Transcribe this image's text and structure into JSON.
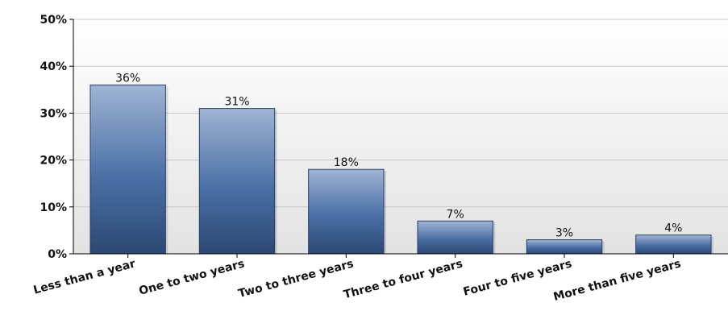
{
  "chart_data": {
    "type": "bar",
    "categories": [
      "Less than a year",
      "One to two years",
      "Two to three years",
      "Three to four years",
      "Four to five years",
      "More than five years"
    ],
    "values": [
      36,
      31,
      18,
      7,
      3,
      4
    ],
    "data_labels": [
      "36%",
      "31%",
      "18%",
      "7%",
      "3%",
      "4%"
    ],
    "yticks": [
      0,
      10,
      20,
      30,
      40,
      50
    ],
    "ytick_labels": [
      "0%",
      "10%",
      "20%",
      "30%",
      "40%",
      "50%"
    ],
    "ylim": [
      0,
      50
    ],
    "title": "",
    "xlabel": "",
    "ylabel": "",
    "grid": true,
    "legend": "none",
    "colors": {
      "bar_top": "#9fb4d4",
      "bar_mid": "#4a6fa5",
      "bar_bottom": "#2c4872",
      "bar_edge": "#26406a",
      "plot_bg_top": "#ffffff",
      "plot_bg_bottom": "#e2e2e2",
      "grid": "#c8c8c8",
      "axis": "#000000"
    }
  }
}
